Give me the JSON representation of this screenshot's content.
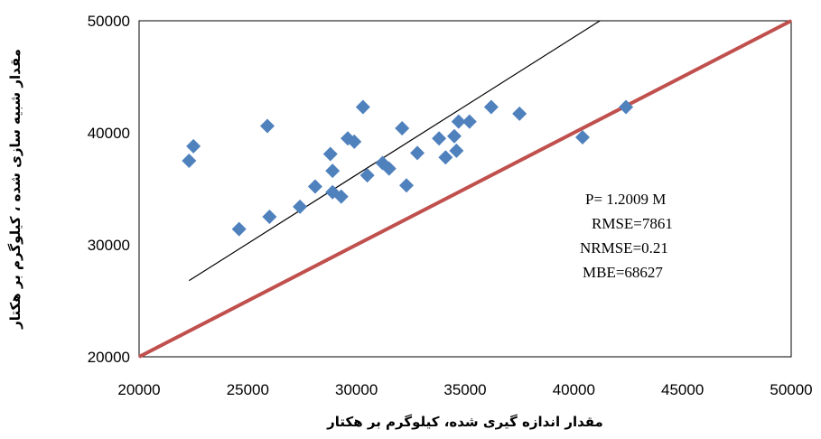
{
  "chart_data": {
    "type": "scatter",
    "xlabel": "مقدار اندازه گیری شده، کیلوگرم بر هکتار",
    "ylabel": "مقدار شبیه سازی شده ، کیلوگرم بر هکتار",
    "xlim": [
      20000,
      50000
    ],
    "ylim": [
      20000,
      50000
    ],
    "x_ticks": [
      "20000",
      "25000",
      "30000",
      "35000",
      "40000",
      "45000",
      "50000"
    ],
    "y_ticks": [
      "20000",
      "30000",
      "40000",
      "50000"
    ],
    "grid": false,
    "legend": "none",
    "series": [
      {
        "marker": "diamond",
        "color": "#4F81BD",
        "points": [
          [
            22300,
            37500
          ],
          [
            22500,
            38800
          ],
          [
            24600,
            31400
          ],
          [
            26000,
            32500
          ],
          [
            25900,
            40600
          ],
          [
            27400,
            33400
          ],
          [
            28100,
            35200
          ],
          [
            28800,
            38100
          ],
          [
            28900,
            36600
          ],
          [
            28900,
            34700
          ],
          [
            29300,
            34300
          ],
          [
            29600,
            39500
          ],
          [
            29900,
            39200
          ],
          [
            30300,
            42300
          ],
          [
            30500,
            36200
          ],
          [
            31200,
            37300
          ],
          [
            31500,
            36800
          ],
          [
            32100,
            40400
          ],
          [
            32300,
            35300
          ],
          [
            32800,
            38200
          ],
          [
            33800,
            39500
          ],
          [
            34100,
            37800
          ],
          [
            34500,
            39700
          ],
          [
            34600,
            38400
          ],
          [
            34700,
            41000
          ],
          [
            35200,
            41000
          ],
          [
            36200,
            42300
          ],
          [
            37500,
            41700
          ],
          [
            40400,
            39600
          ],
          [
            42400,
            42300
          ]
        ]
      }
    ],
    "trend_line": {
      "color": "#000000",
      "x": [
        22300,
        41200
      ],
      "y": [
        26800,
        50000
      ]
    },
    "reference_line": {
      "color": "#C0504D",
      "x": [
        20000,
        50000
      ],
      "y": [
        20000,
        50000
      ]
    },
    "annotations": [
      "P= 1.2009 M",
      "RMSE=7861",
      "NRMSE=0.21",
      "MBE=68627"
    ]
  }
}
